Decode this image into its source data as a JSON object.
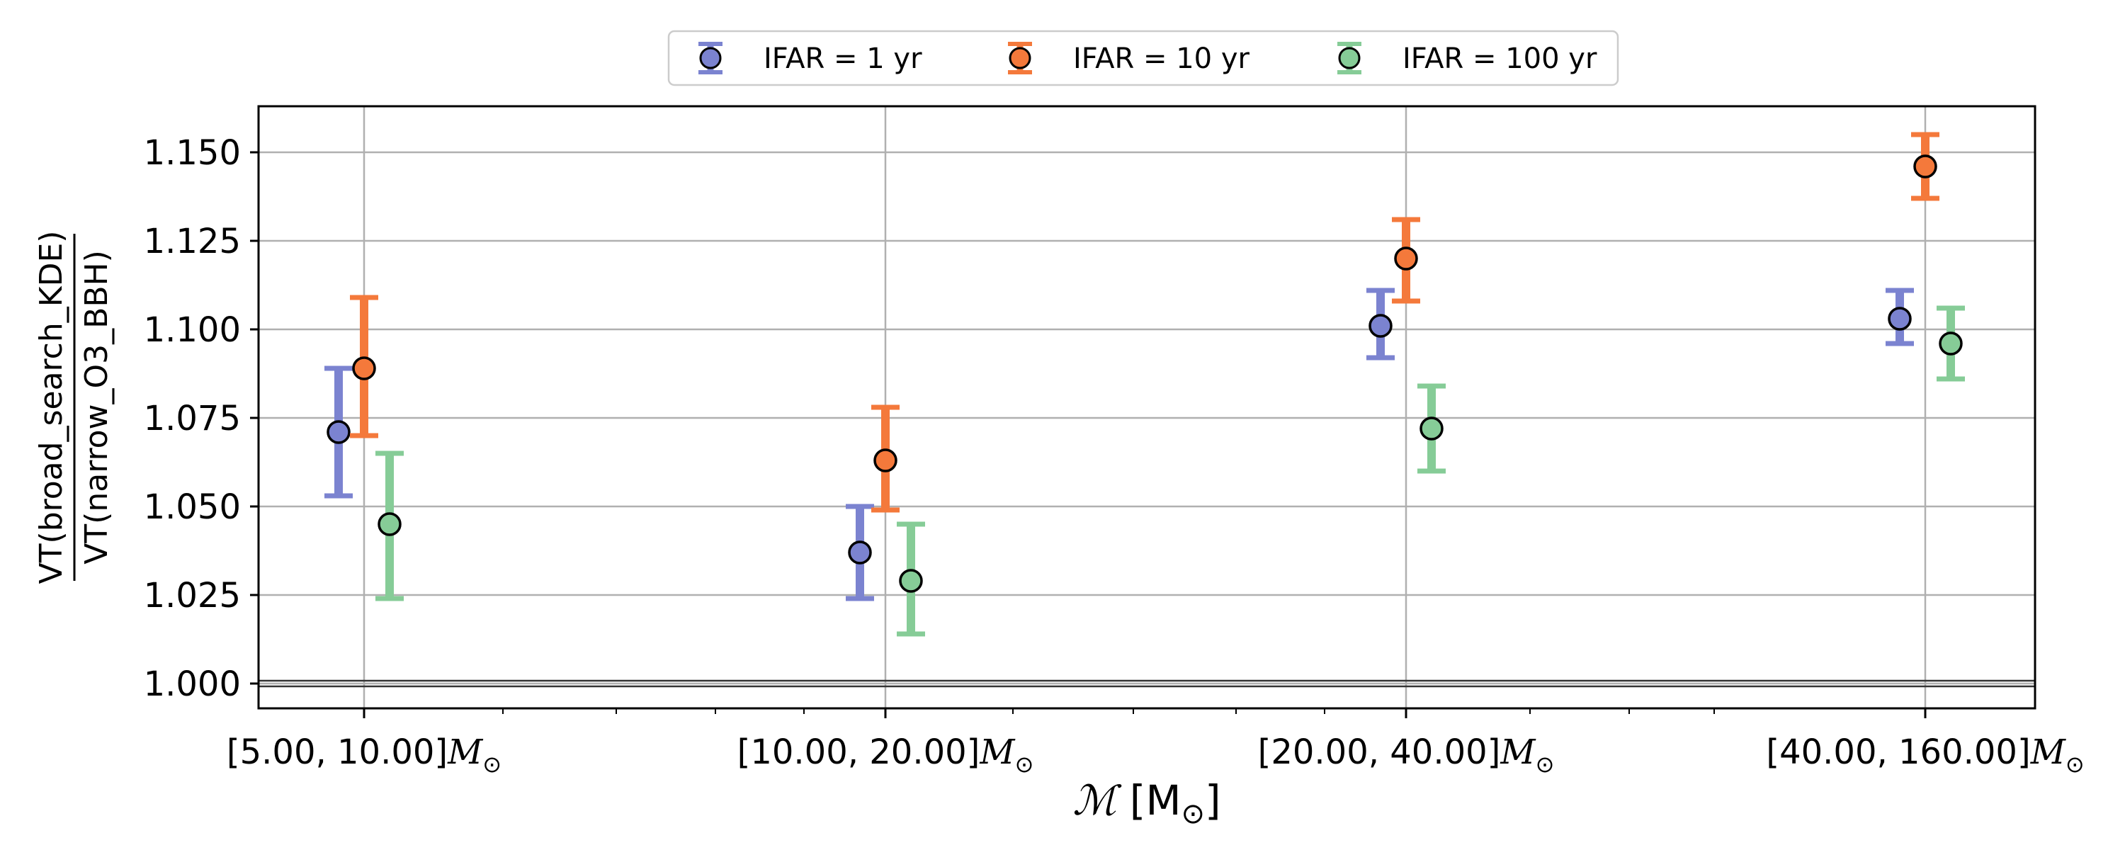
{
  "chart_data": {
    "type": "scatter",
    "categories": [
      "[5.00, 10.00]",
      "[10.00, 20.00]",
      "[20.00, 40.00]",
      "[40.00, 160.00]"
    ],
    "category_unit": "M",
    "category_unit_subscript": "⊙",
    "xlabel": {
      "symbol": "ℳ",
      "text": " [M",
      "sub": "⊙",
      "close": "]"
    },
    "ylabel": {
      "numerator": "VT(broad_search_KDE)",
      "denominator": "VT(narrow_O3_BBH)"
    },
    "ylim": [
      0.993,
      1.163
    ],
    "yticks": [
      "1.000",
      "1.025",
      "1.050",
      "1.075",
      "1.100",
      "1.125",
      "1.150"
    ],
    "reference_line": 1.0,
    "grid": true,
    "legend_position": "top-center",
    "series": [
      {
        "name": "IFAR = 1 yr",
        "color": "#7b83d0",
        "values": [
          1.071,
          1.037,
          1.101,
          1.103
        ],
        "err_low": [
          1.053,
          1.024,
          1.092,
          1.096
        ],
        "err_high": [
          1.089,
          1.05,
          1.111,
          1.111
        ]
      },
      {
        "name": "IFAR = 10 yr",
        "color": "#f4793b",
        "values": [
          1.089,
          1.063,
          1.12,
          1.146
        ],
        "err_low": [
          1.07,
          1.049,
          1.108,
          1.137
        ],
        "err_high": [
          1.109,
          1.078,
          1.131,
          1.155
        ]
      },
      {
        "name": "IFAR = 100 yr",
        "color": "#86cc97",
        "values": [
          1.045,
          1.029,
          1.072,
          1.096
        ],
        "err_low": [
          1.024,
          1.014,
          1.06,
          1.086
        ],
        "err_high": [
          1.065,
          1.045,
          1.084,
          1.106
        ]
      }
    ]
  }
}
